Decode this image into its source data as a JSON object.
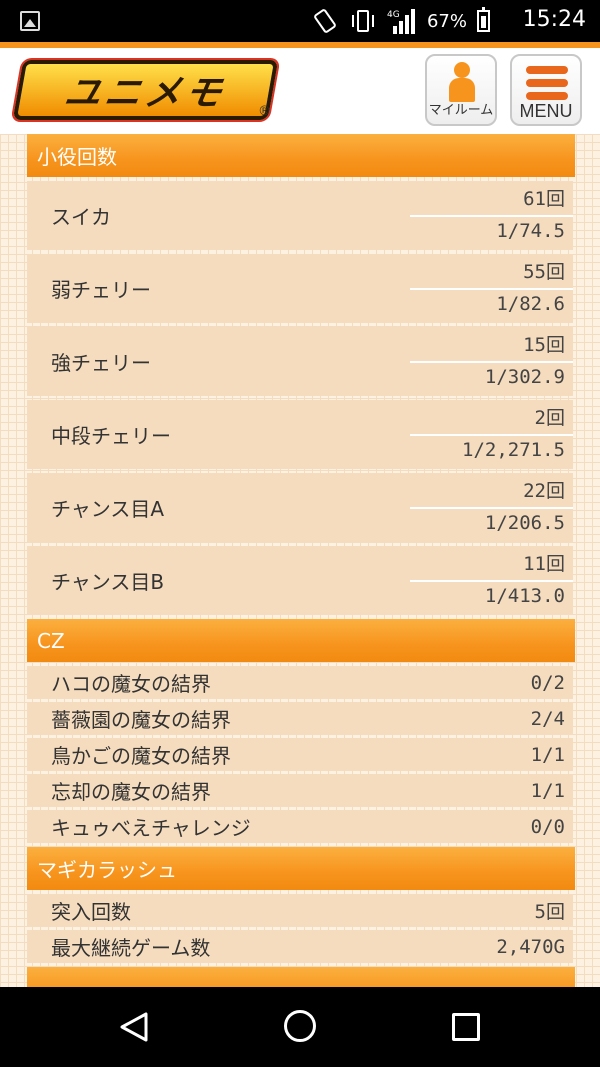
{
  "status_bar": {
    "battery_percent": "67%",
    "time": "15:24",
    "network": "4G"
  },
  "header": {
    "logo_text": "ユニメモ",
    "logo_reg": "®",
    "my_room_label": "マイルーム",
    "menu_label": "MENU"
  },
  "sections": {
    "koyaku": {
      "title": "小役回数",
      "rows": [
        {
          "name": "スイカ",
          "count": "61回",
          "prob": "1/74.5"
        },
        {
          "name": "弱チェリー",
          "count": "55回",
          "prob": "1/82.6"
        },
        {
          "name": "強チェリー",
          "count": "15回",
          "prob": "1/302.9"
        },
        {
          "name": "中段チェリー",
          "count": "2回",
          "prob": "1/2,271.5"
        },
        {
          "name": "チャンス目A",
          "count": "22回",
          "prob": "1/206.5"
        },
        {
          "name": "チャンス目B",
          "count": "11回",
          "prob": "1/413.0"
        }
      ]
    },
    "cz": {
      "title": "CZ",
      "rows": [
        {
          "name": "ハコの魔女の結界",
          "value": "0/2"
        },
        {
          "name": "薔薇園の魔女の結界",
          "value": "2/4"
        },
        {
          "name": "鳥かごの魔女の結界",
          "value": "1/1"
        },
        {
          "name": "忘却の魔女の結界",
          "value": "1/1"
        },
        {
          "name": "キュゥべえチャレンジ",
          "value": "0/0"
        }
      ]
    },
    "magika": {
      "title": "マギカラッシュ",
      "rows": [
        {
          "name": "突入回数",
          "value": "5回"
        },
        {
          "name": "最大継続ゲーム数",
          "value": "2,470G"
        }
      ]
    }
  },
  "colors": {
    "accent": "#f7941d",
    "row_bg": "#f5dcbe",
    "page_bg": "#fdf1e1"
  }
}
